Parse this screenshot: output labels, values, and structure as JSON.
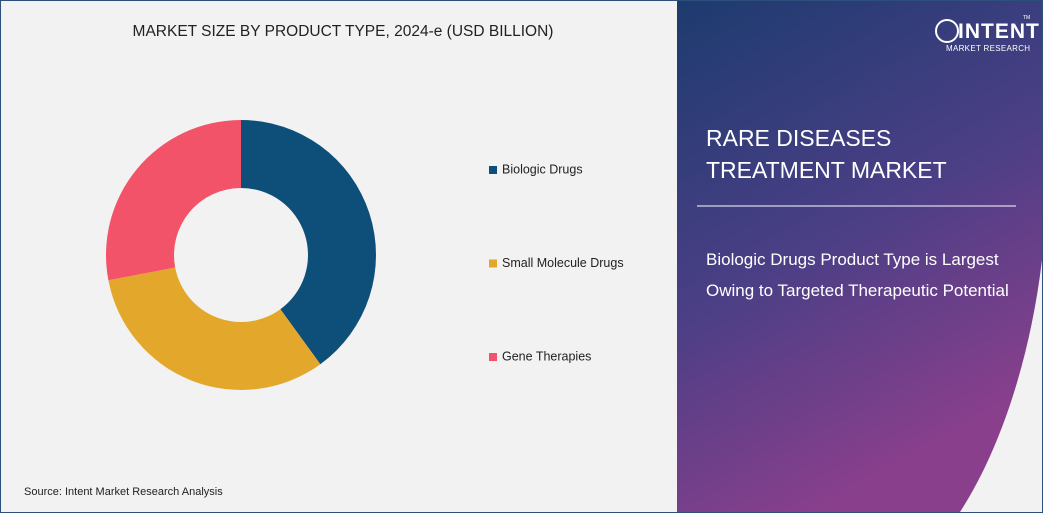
{
  "chart_data": {
    "type": "pie",
    "title": "MARKET SIZE BY PRODUCT TYPE, 2024-e (USD BILLION)",
    "categories": [
      "Biologic Drugs",
      "Small Molecule Drugs",
      "Gene Therapies"
    ],
    "values": [
      40,
      32,
      28
    ],
    "colors": [
      "#0e4f7a",
      "#e3a82b",
      "#f25369"
    ],
    "source": "Source: Intent Market Research Analysis"
  },
  "logo": {
    "name": "INTENT",
    "tm": "TM",
    "subtitle": "MARKET RESEARCH"
  },
  "panel": {
    "title": "RARE DISEASES TREATMENT MARKET",
    "text": "Biologic Drugs Product Type is Largest Owing to Targeted Therapeutic Potential"
  }
}
